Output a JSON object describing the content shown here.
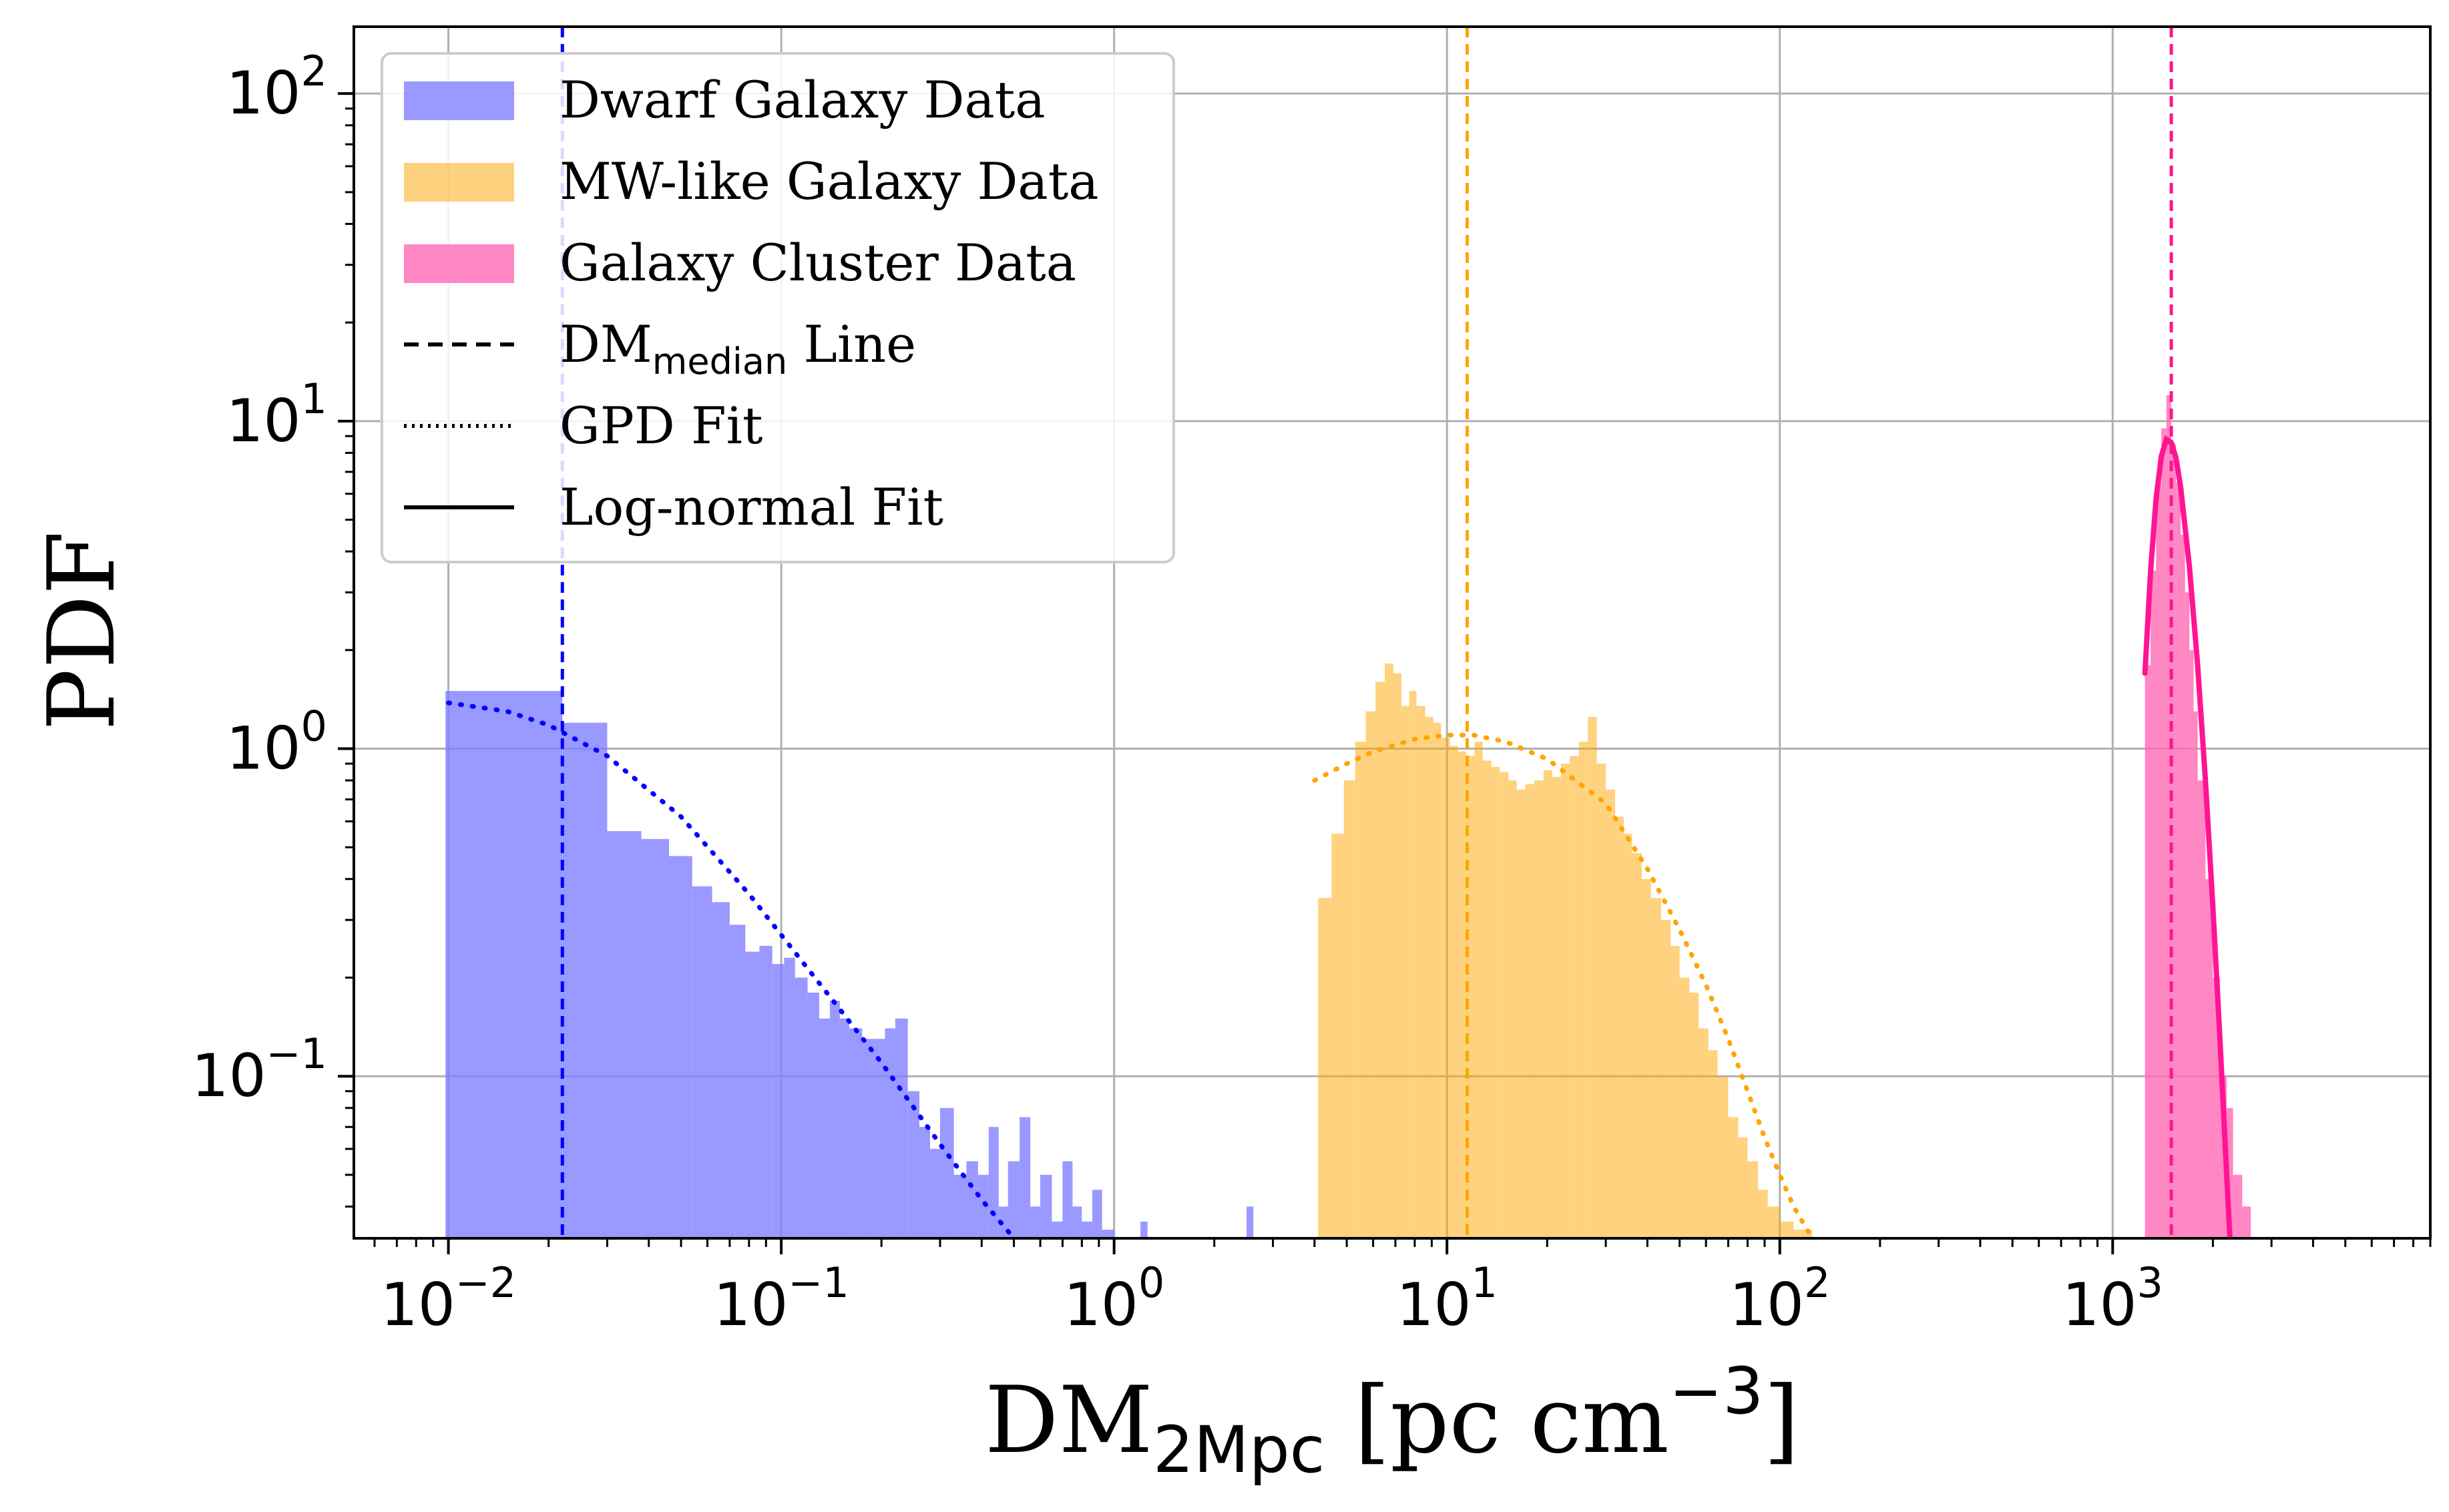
{
  "chart_data": {
    "type": "histogram",
    "x_scale": "log",
    "y_scale": "log",
    "xlim": [
      0.0052,
      9000
    ],
    "ylim": [
      0.032,
      160
    ],
    "grid": true,
    "xlabel": {
      "main": "DM",
      "sub": "2Mpc",
      "rest": " [pc cm",
      "sup": "−3",
      "end": "]"
    },
    "ylabel": "PDF",
    "x_ticks": [
      {
        "value": 0.01,
        "base": "10",
        "exp": "−2"
      },
      {
        "value": 0.1,
        "base": "10",
        "exp": "−1"
      },
      {
        "value": 1,
        "base": "10",
        "exp": "0"
      },
      {
        "value": 10,
        "base": "10",
        "exp": "1"
      },
      {
        "value": 100,
        "base": "10",
        "exp": "2"
      },
      {
        "value": 1000,
        "base": "10",
        "exp": "3"
      }
    ],
    "y_ticks": [
      {
        "value": 0.1,
        "base": "10",
        "exp": "−1"
      },
      {
        "value": 1,
        "base": "10",
        "exp": "0"
      },
      {
        "value": 10,
        "base": "10",
        "exp": "1"
      },
      {
        "value": 100,
        "base": "10",
        "exp": "2"
      }
    ],
    "legend": {
      "position": "upper-left",
      "items": [
        {
          "key": "dwarf",
          "kind": "patch",
          "label": "Dwarf Galaxy Data"
        },
        {
          "key": "mw",
          "kind": "patch",
          "label": "MW-like Galaxy Data"
        },
        {
          "key": "cluster",
          "kind": "patch",
          "label": "Galaxy Cluster Data"
        },
        {
          "key": "median",
          "kind": "dashed",
          "label_main": "DM",
          "label_sub": "median",
          "label_rest": " Line"
        },
        {
          "key": "gpd",
          "kind": "dotted",
          "label": "GPD Fit"
        },
        {
          "key": "lognorm",
          "kind": "solid",
          "label": "Log-normal Fit"
        }
      ]
    },
    "series": [
      {
        "key": "dwarf",
        "label": "Dwarf Galaxy Data",
        "color": "#7f7fff",
        "median": 0.022,
        "median_color": "#0000ff",
        "bins": [
          [
            0.0098,
            0.022,
            1.5
          ],
          [
            0.022,
            0.03,
            1.2
          ],
          [
            0.03,
            0.038,
            0.56
          ],
          [
            0.038,
            0.046,
            0.53
          ],
          [
            0.046,
            0.054,
            0.47
          ],
          [
            0.054,
            0.062,
            0.38
          ],
          [
            0.062,
            0.07,
            0.34
          ],
          [
            0.07,
            0.078,
            0.29
          ],
          [
            0.078,
            0.086,
            0.24
          ],
          [
            0.086,
            0.094,
            0.25
          ],
          [
            0.094,
            0.102,
            0.22
          ],
          [
            0.102,
            0.11,
            0.23
          ],
          [
            0.11,
            0.12,
            0.2
          ],
          [
            0.12,
            0.13,
            0.18
          ],
          [
            0.13,
            0.14,
            0.15
          ],
          [
            0.14,
            0.15,
            0.17
          ],
          [
            0.15,
            0.16,
            0.15
          ],
          [
            0.16,
            0.175,
            0.14
          ],
          [
            0.175,
            0.19,
            0.13
          ],
          [
            0.19,
            0.205,
            0.13
          ],
          [
            0.205,
            0.22,
            0.14
          ],
          [
            0.22,
            0.24,
            0.15
          ],
          [
            0.24,
            0.26,
            0.09
          ],
          [
            0.26,
            0.28,
            0.07
          ],
          [
            0.28,
            0.3,
            0.06
          ],
          [
            0.3,
            0.33,
            0.08
          ],
          [
            0.33,
            0.36,
            0.05
          ],
          [
            0.36,
            0.39,
            0.055
          ],
          [
            0.39,
            0.42,
            0.05
          ],
          [
            0.42,
            0.45,
            0.07
          ],
          [
            0.45,
            0.48,
            0.04
          ],
          [
            0.48,
            0.52,
            0.055
          ],
          [
            0.52,
            0.56,
            0.075
          ],
          [
            0.56,
            0.6,
            0.04
          ],
          [
            0.6,
            0.65,
            0.05
          ],
          [
            0.65,
            0.7,
            0.036
          ],
          [
            0.7,
            0.75,
            0.055
          ],
          [
            0.75,
            0.8,
            0.04
          ],
          [
            0.8,
            0.86,
            0.036
          ],
          [
            0.86,
            0.92,
            0.045
          ],
          [
            0.92,
            1.0,
            0.034
          ],
          [
            1.2,
            1.26,
            0.036
          ],
          [
            2.5,
            2.62,
            0.04
          ]
        ]
      },
      {
        "key": "mw",
        "label": "MW-like Galaxy Data",
        "color": "#ffa500",
        "median": 11.5,
        "median_color": "#ffa500",
        "bins": [
          [
            4.1,
            4.5,
            0.35
          ],
          [
            4.5,
            4.9,
            0.55
          ],
          [
            4.9,
            5.3,
            0.8
          ],
          [
            5.3,
            5.7,
            1.05
          ],
          [
            5.7,
            6.1,
            1.3
          ],
          [
            6.1,
            6.5,
            1.6
          ],
          [
            6.5,
            6.9,
            1.82
          ],
          [
            6.9,
            7.3,
            1.7
          ],
          [
            7.3,
            7.7,
            1.35
          ],
          [
            7.7,
            8.1,
            1.5
          ],
          [
            8.1,
            8.6,
            1.35
          ],
          [
            8.6,
            9.1,
            1.25
          ],
          [
            9.1,
            9.6,
            1.2
          ],
          [
            9.6,
            10.2,
            1.08
          ],
          [
            10.2,
            10.8,
            1.02
          ],
          [
            10.8,
            11.4,
            0.98
          ],
          [
            11.4,
            12.1,
            0.95
          ],
          [
            12.1,
            12.8,
            1.05
          ],
          [
            12.8,
            13.6,
            0.92
          ],
          [
            13.6,
            14.4,
            0.88
          ],
          [
            14.4,
            15.3,
            0.85
          ],
          [
            15.3,
            16.2,
            0.8
          ],
          [
            16.2,
            17.2,
            0.75
          ],
          [
            17.2,
            18.3,
            0.78
          ],
          [
            18.3,
            19.5,
            0.8
          ],
          [
            19.5,
            20.7,
            0.86
          ],
          [
            20.7,
            22,
            0.82
          ],
          [
            22,
            23.4,
            0.9
          ],
          [
            23.4,
            24.9,
            0.95
          ],
          [
            24.9,
            26.5,
            1.05
          ],
          [
            26.5,
            28.2,
            1.25
          ],
          [
            28.2,
            30,
            0.9
          ],
          [
            30,
            32,
            0.75
          ],
          [
            32,
            34,
            0.62
          ],
          [
            34,
            36,
            0.55
          ],
          [
            36,
            38.5,
            0.48
          ],
          [
            38.5,
            41,
            0.4
          ],
          [
            41,
            44,
            0.35
          ],
          [
            44,
            47,
            0.3
          ],
          [
            47,
            50,
            0.25
          ],
          [
            50,
            53.5,
            0.2
          ],
          [
            53.5,
            57,
            0.18
          ],
          [
            57,
            61,
            0.14
          ],
          [
            61,
            65,
            0.12
          ],
          [
            65,
            70,
            0.1
          ],
          [
            70,
            75,
            0.075
          ],
          [
            75,
            80,
            0.065
          ],
          [
            80,
            86,
            0.055
          ],
          [
            86,
            92,
            0.045
          ],
          [
            92,
            100,
            0.04
          ],
          [
            100,
            110,
            0.036
          ],
          [
            110,
            125,
            0.034
          ]
        ]
      },
      {
        "key": "cluster",
        "label": "Galaxy Cluster Data",
        "color": "#ff69b4",
        "median": 1500,
        "median_color": "#ff1493",
        "bins": [
          [
            1250,
            1300,
            1.8
          ],
          [
            1300,
            1350,
            3.5
          ],
          [
            1350,
            1400,
            6.5
          ],
          [
            1400,
            1450,
            9.5
          ],
          [
            1450,
            1500,
            12
          ],
          [
            1500,
            1550,
            8.5
          ],
          [
            1550,
            1600,
            6.5
          ],
          [
            1600,
            1650,
            4.5
          ],
          [
            1650,
            1700,
            3
          ],
          [
            1700,
            1750,
            2
          ],
          [
            1750,
            1800,
            1.3
          ],
          [
            1800,
            1900,
            0.8
          ],
          [
            1900,
            2000,
            0.4
          ],
          [
            2000,
            2100,
            0.2
          ],
          [
            2100,
            2200,
            0.1
          ],
          [
            2200,
            2300,
            0.08
          ],
          [
            2300,
            2450,
            0.05
          ],
          [
            2450,
            2600,
            0.04
          ]
        ]
      }
    ],
    "fits": [
      {
        "key": "gpd",
        "style": "dotted",
        "color": "#0000ff",
        "points": [
          [
            0.01,
            1.38
          ],
          [
            0.015,
            1.3
          ],
          [
            0.02,
            1.18
          ],
          [
            0.03,
            0.95
          ],
          [
            0.05,
            0.62
          ],
          [
            0.08,
            0.36
          ],
          [
            0.1,
            0.27
          ],
          [
            0.15,
            0.16
          ],
          [
            0.2,
            0.11
          ],
          [
            0.3,
            0.062
          ],
          [
            0.4,
            0.042
          ],
          [
            0.5,
            0.032
          ]
        ]
      },
      {
        "key": "gpd",
        "style": "dotted",
        "color": "#ffa500",
        "points": [
          [
            4.0,
            0.8
          ],
          [
            5,
            0.9
          ],
          [
            6,
            0.98
          ],
          [
            8,
            1.07
          ],
          [
            10,
            1.1
          ],
          [
            12,
            1.1
          ],
          [
            15,
            1.05
          ],
          [
            20,
            0.93
          ],
          [
            30,
            0.68
          ],
          [
            40,
            0.43
          ],
          [
            50,
            0.28
          ],
          [
            60,
            0.19
          ],
          [
            70,
            0.13
          ],
          [
            80,
            0.09
          ],
          [
            90,
            0.065
          ],
          [
            100,
            0.05
          ],
          [
            110,
            0.04
          ],
          [
            125,
            0.032
          ]
        ]
      },
      {
        "key": "lognorm",
        "style": "solid",
        "color": "#ff1493",
        "points": [
          [
            1250,
            1.7
          ],
          [
            1300,
            3.5
          ],
          [
            1350,
            5.8
          ],
          [
            1400,
            7.8
          ],
          [
            1450,
            8.8
          ],
          [
            1500,
            8.6
          ],
          [
            1550,
            7.7
          ],
          [
            1600,
            6.3
          ],
          [
            1700,
            3.6
          ],
          [
            1800,
            1.8
          ],
          [
            1900,
            0.8
          ],
          [
            2000,
            0.33
          ],
          [
            2100,
            0.13
          ],
          [
            2200,
            0.05
          ],
          [
            2250,
            0.032
          ]
        ]
      }
    ]
  }
}
